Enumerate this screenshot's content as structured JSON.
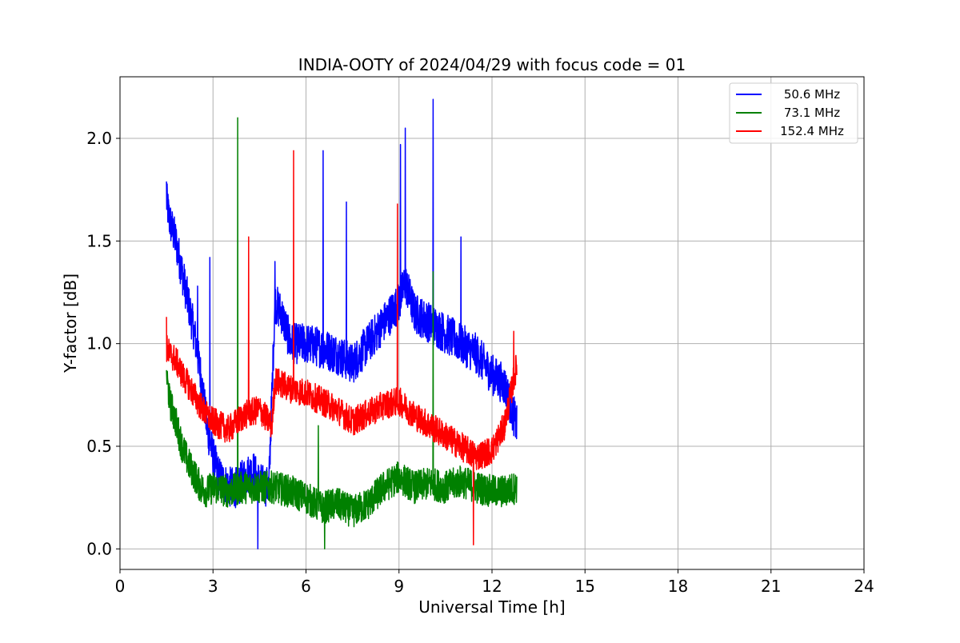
{
  "chart_data": {
    "type": "line",
    "title": "INDIA-OOTY of 2024/04/29 with focus code = 01",
    "xlabel": "Universal Time [h]",
    "ylabel": "Y-factor [dB]",
    "xlim": [
      0,
      24
    ],
    "ylim": [
      -0.1,
      2.3
    ],
    "xticks": [
      0,
      3,
      6,
      9,
      12,
      15,
      18,
      21,
      24
    ],
    "yticks": [
      0.0,
      0.5,
      1.0,
      1.5,
      2.0
    ],
    "xtick_labels": [
      "0",
      "3",
      "6",
      "9",
      "12",
      "15",
      "18",
      "21",
      "24"
    ],
    "ytick_labels": [
      "0.0",
      "0.5",
      "1.0",
      "1.5",
      "2.0"
    ],
    "grid": true,
    "legend_position": "top-right",
    "series": [
      {
        "name": "50.6 MHz",
        "color": "#0000ff",
        "x": [
          1.5,
          1.6,
          1.8,
          2.0,
          2.2,
          2.4,
          2.6,
          2.8,
          3.0,
          3.2,
          3.5,
          3.8,
          4.0,
          4.3,
          4.5,
          4.8,
          5.0,
          5.2,
          5.5,
          6.0,
          6.5,
          7.0,
          7.5,
          8.0,
          8.5,
          9.0,
          9.2,
          9.5,
          10.0,
          10.5,
          11.0,
          11.5,
          12.0,
          12.4,
          12.8
        ],
        "y": [
          1.7,
          1.6,
          1.5,
          1.35,
          1.2,
          1.05,
          0.85,
          0.6,
          0.45,
          0.35,
          0.3,
          0.3,
          0.35,
          0.38,
          0.32,
          0.3,
          1.2,
          1.15,
          1.0,
          1.0,
          0.98,
          0.95,
          0.9,
          1.0,
          1.1,
          1.2,
          1.3,
          1.15,
          1.1,
          1.05,
          1.0,
          0.95,
          0.85,
          0.8,
          0.6
        ],
        "spikes": [
          [
            1.5,
            1.79
          ],
          [
            2.5,
            1.28
          ],
          [
            2.9,
            1.42
          ],
          [
            4.45,
            0.0
          ],
          [
            5.0,
            1.4
          ],
          [
            6.55,
            1.94
          ],
          [
            7.3,
            1.69
          ],
          [
            9.05,
            1.97
          ],
          [
            9.2,
            2.05
          ],
          [
            10.1,
            2.19
          ],
          [
            11.0,
            1.52
          ]
        ]
      },
      {
        "name": "73.1 MHz",
        "color": "#008000",
        "x": [
          1.5,
          1.6,
          1.8,
          2.0,
          2.2,
          2.4,
          2.6,
          2.8,
          3.0,
          3.5,
          4.0,
          4.5,
          5.0,
          5.5,
          6.0,
          6.5,
          7.0,
          7.5,
          8.0,
          8.5,
          9.0,
          9.5,
          10.0,
          10.5,
          11.0,
          11.5,
          12.0,
          12.4,
          12.8
        ],
        "y": [
          0.85,
          0.72,
          0.62,
          0.5,
          0.42,
          0.36,
          0.3,
          0.28,
          0.3,
          0.28,
          0.3,
          0.3,
          0.3,
          0.28,
          0.25,
          0.2,
          0.22,
          0.18,
          0.22,
          0.3,
          0.35,
          0.3,
          0.32,
          0.3,
          0.33,
          0.3,
          0.28,
          0.28,
          0.3
        ],
        "spikes": [
          [
            3.8,
            2.1
          ],
          [
            6.6,
            0.0
          ],
          [
            6.4,
            0.6
          ],
          [
            10.1,
            1.35
          ]
        ]
      },
      {
        "name": "152.4 MHz",
        "color": "#ff0000",
        "x": [
          1.5,
          1.6,
          1.8,
          2.0,
          2.2,
          2.5,
          2.8,
          3.0,
          3.5,
          4.0,
          4.5,
          4.9,
          5.0,
          5.5,
          6.0,
          6.5,
          7.0,
          7.5,
          8.0,
          8.5,
          9.0,
          9.5,
          10.0,
          10.5,
          11.0,
          11.5,
          12.0,
          12.4,
          12.8
        ],
        "y": [
          0.98,
          0.95,
          0.92,
          0.85,
          0.8,
          0.72,
          0.65,
          0.62,
          0.58,
          0.65,
          0.68,
          0.6,
          0.82,
          0.78,
          0.76,
          0.72,
          0.68,
          0.62,
          0.66,
          0.7,
          0.72,
          0.65,
          0.6,
          0.55,
          0.5,
          0.45,
          0.48,
          0.6,
          0.9
        ],
        "spikes": [
          [
            1.5,
            1.13
          ],
          [
            4.15,
            1.52
          ],
          [
            5.6,
            1.94
          ],
          [
            8.95,
            1.68
          ],
          [
            11.4,
            0.02
          ],
          [
            12.7,
            1.06
          ]
        ]
      }
    ]
  }
}
